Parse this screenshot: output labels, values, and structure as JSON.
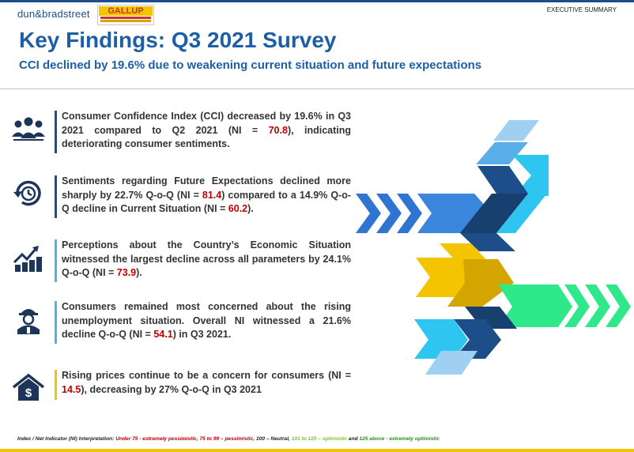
{
  "header": {
    "brand_left": "dun&bradstreet",
    "brand_right": "GALLUP",
    "section_label": "EXECUTIVE SUMMARY"
  },
  "title": "Key Findings: Q3 2021 Survey",
  "subtitle": "CCI declined by 19.6% due to weakening current situation and future expectations",
  "findings": [
    {
      "icon": "people-group-icon",
      "bar_color": "#1d4e89",
      "text_before": "Consumer Confidence Index (CCI) decreased by 19.6% in Q3 2021 compared to Q2 2021 (NI = ",
      "value": "70.8",
      "text_after": "), indicating deteriorating consumer sentiments."
    },
    {
      "icon": "clock-refresh-icon",
      "bar_color": "#1d4e89",
      "text_before": "Sentiments regarding Future Expectations declined more sharply by 22.7% Q-o-Q (NI = ",
      "value": "81.4",
      "text_after": ") compared to a 14.9% Q-o-Q decline in Current Situation (NI = ",
      "value2": "60.2",
      "text_end": ")."
    },
    {
      "icon": "growth-chart-icon",
      "bar_color": "#4fb3e8",
      "text_before": "Perceptions about the Country’s Economic Situation witnessed the largest decline across all parameters by 24.1% Q-o-Q (NI = ",
      "value": "73.9",
      "text_after": ")."
    },
    {
      "icon": "worker-helmet-icon",
      "bar_color": "#4fb3e8",
      "text_before": "Consumers remained most concerned about the rising unemployment situation. Overall NI witnessed a 21.6% decline Q-o-Q (NI = ",
      "value": "54.1",
      "text_after": ") in Q3 2021."
    },
    {
      "icon": "house-dollar-icon",
      "bar_color": "#f5c400",
      "text_before": "Rising prices continue to be a concern for consumers (NI = ",
      "value": "14.5",
      "text_after": "), decreasing by 27% Q-o-Q in Q3 2021"
    }
  ],
  "legend": {
    "prefix": "Index / Net Indicator (NI) Interpretation: ",
    "p1": "Under 75 - extremely pessimistic, ",
    "p2": "75 to 99 – pessimistic, ",
    "p3": "100 – Neutral, ",
    "p4": "101 to 125 – optimistic ",
    "p5": "and ",
    "p6": "125 above - extremely optimistic"
  },
  "colors": {
    "navy": "#1d4e89",
    "blue": "#1d5fa6",
    "sky": "#4fb3e8",
    "cyan": "#2ec5f0",
    "yellow": "#f5c400",
    "green": "#2ee88a",
    "red": "#c00000"
  }
}
